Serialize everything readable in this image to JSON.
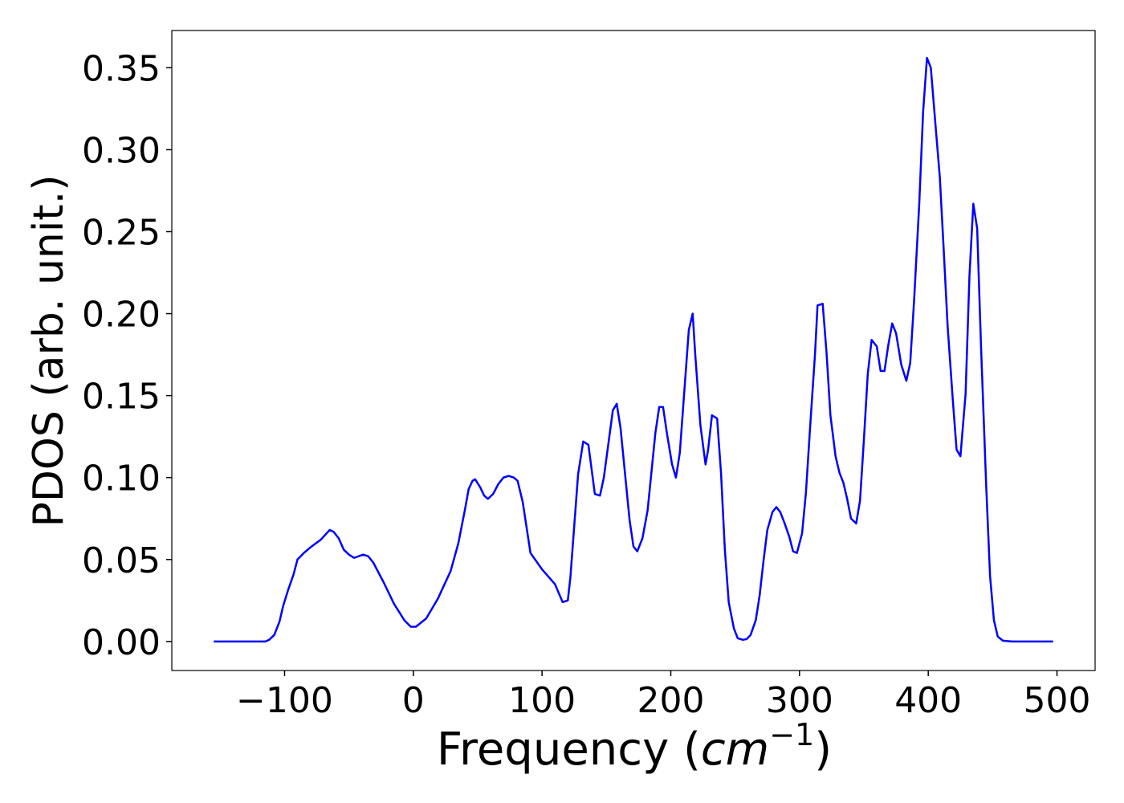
{
  "chart_data": {
    "type": "line",
    "xlabel": [
      "Frequency (",
      "cm",
      "−1",
      ")"
    ],
    "ylabel": "PDOS (arb. unit.)",
    "color": "#0000ff",
    "x": [
      -155,
      -130,
      -115,
      -112,
      -108,
      -104,
      -101,
      -97,
      -93,
      -90,
      -85,
      -79,
      -72,
      -65,
      -62,
      -58,
      -54,
      -50,
      -46,
      -39,
      -35,
      -31,
      -23,
      -15,
      -7,
      -2,
      2,
      10,
      19,
      29,
      35,
      40,
      43,
      46,
      48,
      52,
      55,
      58,
      62,
      66,
      70,
      74,
      78,
      81,
      85,
      91,
      100,
      110,
      116,
      120,
      122,
      128,
      132,
      136,
      141,
      145,
      148,
      155,
      158,
      161,
      168,
      171,
      174,
      178,
      182,
      188,
      191,
      194,
      197,
      201,
      204,
      207,
      214,
      217,
      219,
      223,
      227,
      229,
      232,
      236,
      239,
      242,
      245,
      249,
      252,
      256,
      259,
      262,
      266,
      269,
      272,
      275,
      279,
      282,
      285,
      288,
      292,
      295,
      298,
      302,
      305,
      308,
      312,
      314,
      318,
      321,
      324,
      328,
      331,
      334,
      337,
      340,
      344,
      347,
      350,
      353,
      356,
      360,
      363,
      366,
      369,
      372,
      375,
      379,
      383,
      386,
      389,
      393,
      396,
      399,
      402,
      405,
      409,
      412,
      415,
      419,
      422,
      425,
      429,
      432,
      435,
      438,
      441,
      445,
      448,
      451,
      454,
      458,
      465,
      480,
      497
    ],
    "values": [
      0,
      0,
      0,
      0.001,
      0.004,
      0.012,
      0.022,
      0.032,
      0.041,
      0.05,
      0.054,
      0.058,
      0.062,
      0.068,
      0.067,
      0.063,
      0.056,
      0.053,
      0.051,
      0.053,
      0.052,
      0.048,
      0.036,
      0.023,
      0.013,
      0.009,
      0.009,
      0.014,
      0.026,
      0.043,
      0.06,
      0.08,
      0.093,
      0.098,
      0.099,
      0.094,
      0.089,
      0.087,
      0.09,
      0.096,
      0.1,
      0.101,
      0.1,
      0.098,
      0.085,
      0.054,
      0.044,
      0.035,
      0.024,
      0.025,
      0.039,
      0.102,
      0.122,
      0.12,
      0.09,
      0.089,
      0.1,
      0.141,
      0.145,
      0.13,
      0.074,
      0.058,
      0.055,
      0.063,
      0.08,
      0.127,
      0.143,
      0.143,
      0.127,
      0.108,
      0.1,
      0.115,
      0.19,
      0.2,
      0.175,
      0.132,
      0.108,
      0.117,
      0.138,
      0.136,
      0.103,
      0.056,
      0.024,
      0.008,
      0.002,
      0.001,
      0.0015,
      0.004,
      0.013,
      0.028,
      0.049,
      0.068,
      0.079,
      0.082,
      0.079,
      0.073,
      0.064,
      0.055,
      0.054,
      0.066,
      0.091,
      0.128,
      0.175,
      0.205,
      0.206,
      0.176,
      0.138,
      0.113,
      0.103,
      0.097,
      0.087,
      0.075,
      0.072,
      0.086,
      0.123,
      0.163,
      0.184,
      0.18,
      0.165,
      0.165,
      0.181,
      0.194,
      0.188,
      0.169,
      0.159,
      0.17,
      0.208,
      0.267,
      0.323,
      0.356,
      0.35,
      0.321,
      0.283,
      0.239,
      0.193,
      0.148,
      0.117,
      0.113,
      0.151,
      0.223,
      0.267,
      0.252,
      0.18,
      0.095,
      0.04,
      0.013,
      0.003,
      0.0005,
      0,
      0,
      0
    ],
    "xlim": [
      -187.6,
      529.6
    ],
    "ylim": [
      -0.0177,
      0.3727
    ],
    "xticks": [
      {
        "value": -100,
        "label": "−100"
      },
      0,
      100,
      200,
      300,
      400,
      500
    ],
    "yticks": [
      {
        "value": 0,
        "label": "0.00"
      },
      {
        "value": 0.05,
        "label": "0.05"
      },
      {
        "value": 0.1,
        "label": "0.10"
      },
      {
        "value": 0.15,
        "label": "0.15"
      },
      {
        "value": 0.2,
        "label": "0.20"
      },
      {
        "value": 0.25,
        "label": "0.25"
      },
      {
        "value": 0.3,
        "label": "0.30"
      },
      {
        "value": 0.35,
        "label": "0.35"
      }
    ],
    "grid": false
  }
}
